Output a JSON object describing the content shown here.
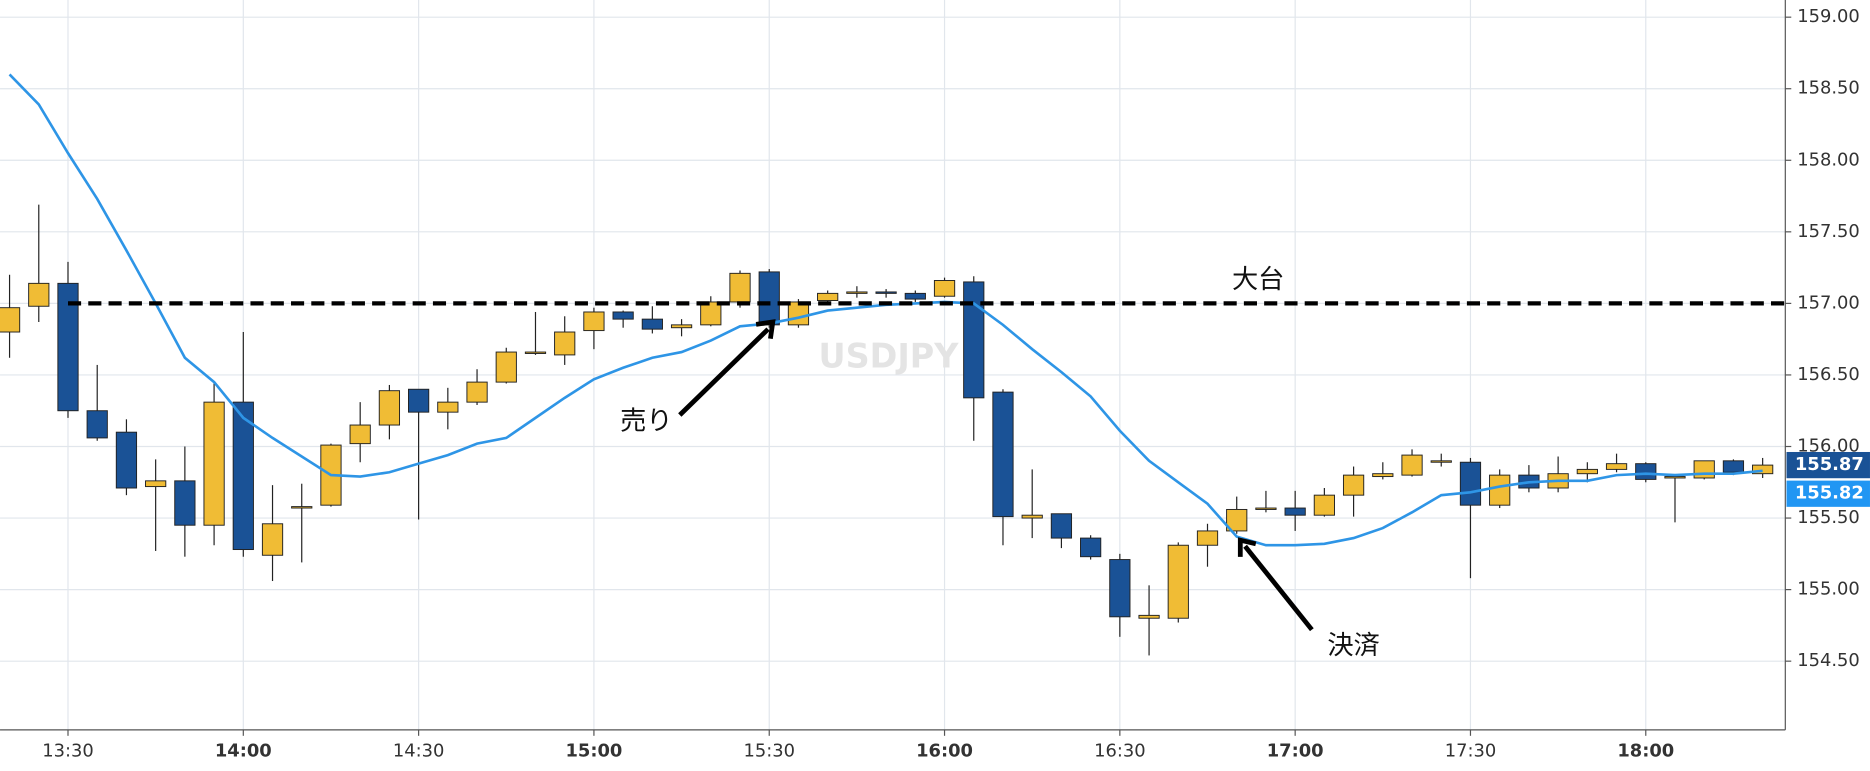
{
  "chart_data": {
    "type": "candlestick",
    "watermark": "USDJPY",
    "categories": [
      null,
      null,
      "13:30",
      null,
      null,
      null,
      null,
      null,
      "14:00",
      null,
      null,
      null,
      null,
      null,
      "14:30",
      null,
      null,
      null,
      null,
      null,
      "15:00",
      null,
      null,
      null,
      null,
      null,
      "15:30",
      null,
      null,
      null,
      null,
      null,
      "16:00",
      null,
      null,
      null,
      null,
      null,
      "16:30",
      null,
      null,
      null,
      null,
      null,
      "17:00",
      null,
      null,
      null,
      null,
      null,
      "17:30",
      null,
      null,
      null,
      null,
      null,
      "18:00",
      null,
      null,
      null,
      null
    ],
    "open": [
      156.8,
      156.98,
      157.14,
      156.25,
      156.1,
      155.72,
      155.76,
      155.45,
      156.31,
      155.24,
      155.57,
      155.59,
      156.02,
      156.15,
      156.4,
      156.24,
      156.31,
      156.45,
      156.65,
      156.64,
      156.81,
      156.94,
      156.89,
      156.83,
      156.85,
      157.01,
      157.22,
      156.85,
      157.02,
      157.07,
      157.08,
      157.07,
      157.05,
      157.15,
      156.38,
      155.5,
      155.53,
      155.36,
      155.21,
      154.8,
      154.8,
      155.31,
      155.41,
      155.56,
      155.57,
      155.52,
      155.66,
      155.79,
      155.8,
      155.89,
      155.89,
      155.59,
      155.8,
      155.71,
      155.81,
      155.84,
      155.88,
      155.78,
      155.78,
      155.9,
      155.81
    ],
    "high": [
      157.2,
      157.69,
      157.29,
      156.57,
      156.19,
      155.91,
      156.0,
      156.44,
      156.8,
      155.73,
      155.74,
      156.02,
      156.31,
      156.43,
      156.4,
      156.41,
      156.54,
      156.69,
      156.94,
      156.91,
      156.97,
      156.95,
      156.98,
      156.89,
      157.05,
      157.23,
      157.24,
      157.03,
      157.09,
      157.12,
      157.1,
      157.09,
      157.18,
      157.19,
      156.4,
      155.84,
      155.53,
      155.38,
      155.25,
      155.03,
      155.33,
      155.46,
      155.65,
      155.69,
      155.69,
      155.71,
      155.86,
      155.89,
      155.98,
      155.95,
      155.92,
      155.84,
      155.87,
      155.93,
      155.89,
      155.95,
      155.89,
      155.79,
      155.9,
      155.91,
      155.92
    ],
    "low": [
      156.62,
      156.87,
      156.2,
      156.04,
      155.66,
      155.27,
      155.23,
      155.31,
      155.23,
      155.06,
      155.19,
      155.58,
      155.89,
      156.05,
      155.49,
      156.12,
      156.29,
      156.44,
      156.64,
      156.57,
      156.68,
      156.83,
      156.79,
      156.77,
      156.84,
      156.97,
      156.83,
      156.83,
      156.99,
      157.04,
      157.04,
      157.01,
      157.04,
      156.04,
      155.31,
      155.36,
      155.29,
      155.21,
      154.67,
      154.54,
      154.77,
      155.16,
      155.39,
      155.54,
      155.41,
      155.51,
      155.51,
      155.77,
      155.79,
      155.86,
      155.08,
      155.57,
      155.68,
      155.68,
      155.75,
      155.82,
      155.75,
      155.47,
      155.77,
      155.8,
      155.78
    ],
    "close": [
      156.97,
      157.14,
      156.25,
      156.06,
      155.71,
      155.76,
      155.45,
      156.31,
      155.28,
      155.46,
      155.58,
      156.01,
      156.15,
      156.39,
      156.24,
      156.31,
      156.45,
      156.66,
      156.66,
      156.8,
      156.94,
      156.89,
      156.82,
      156.85,
      157.01,
      157.21,
      156.85,
      157.01,
      157.07,
      157.08,
      157.07,
      157.03,
      157.16,
      156.34,
      155.51,
      155.52,
      155.36,
      155.23,
      154.81,
      154.82,
      155.31,
      155.41,
      155.56,
      155.57,
      155.52,
      155.66,
      155.8,
      155.81,
      155.94,
      155.9,
      155.59,
      155.8,
      155.71,
      155.81,
      155.84,
      155.88,
      155.77,
      155.79,
      155.9,
      155.82,
      155.87
    ],
    "up_color": "#f0bc35",
    "down_color": "#1a5296",
    "ma": {
      "color": "#2e95e6",
      "values": [
        158.6,
        158.39,
        158.05,
        157.73,
        157.37,
        157.0,
        156.62,
        156.45,
        156.2,
        156.06,
        155.93,
        155.8,
        155.79,
        155.82,
        155.88,
        155.94,
        156.02,
        156.06,
        156.2,
        156.34,
        156.47,
        156.55,
        156.62,
        156.66,
        156.74,
        156.84,
        156.86,
        156.9,
        156.95,
        156.97,
        156.99,
        157.0,
        157.01,
        157.0,
        156.85,
        156.68,
        156.52,
        156.35,
        156.11,
        155.9,
        155.75,
        155.6,
        155.37,
        155.31,
        155.31,
        155.32,
        155.36,
        155.43,
        155.54,
        155.66,
        155.68,
        155.72,
        155.75,
        155.76,
        155.76,
        155.8,
        155.81,
        155.8,
        155.81,
        155.81,
        155.83
      ]
    },
    "ylim": [
      154.02,
      159.12
    ],
    "yticks": [
      {
        "value": 154.5,
        "label": "154.50"
      },
      {
        "value": 155,
        "label": "155.00"
      },
      {
        "value": 155.5,
        "label": "155.50"
      },
      {
        "value": 156,
        "label": "156.00"
      },
      {
        "value": 156.5,
        "label": "156.50"
      },
      {
        "value": 157,
        "label": "157.00"
      },
      {
        "value": 157.5,
        "label": "157.50"
      },
      {
        "value": 158,
        "label": "158.00"
      },
      {
        "value": 158.5,
        "label": "158.50"
      },
      {
        "value": 159,
        "label": "159.00"
      }
    ],
    "grid": true,
    "level": {
      "value": 157,
      "label": "大台"
    },
    "annotations": [
      "売り",
      "決済"
    ],
    "price_tags": [
      {
        "value": 155.87,
        "color": "#1a5296"
      },
      {
        "value": 155.82,
        "color": "#2196f3"
      }
    ]
  }
}
